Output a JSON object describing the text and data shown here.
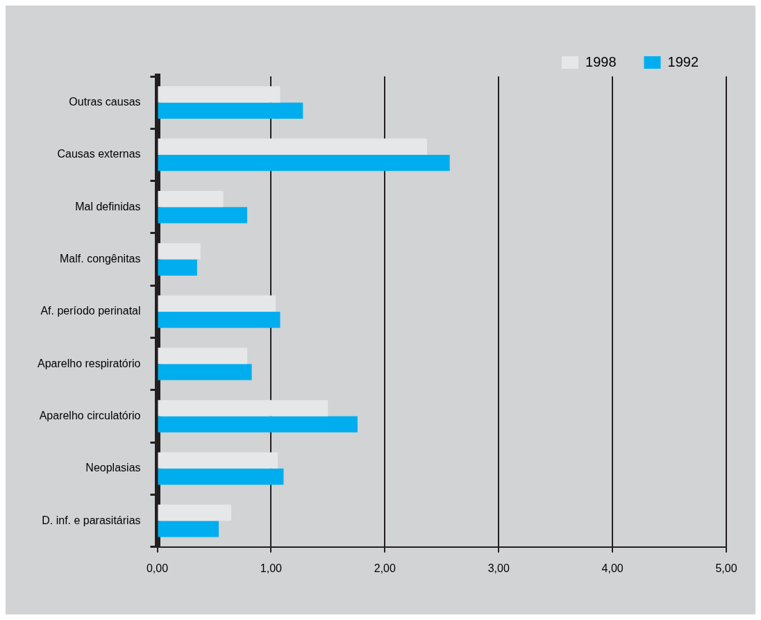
{
  "chart_data": {
    "type": "bar",
    "orientation": "horizontal",
    "categories": [
      "Outras causas",
      "Causas externas",
      "Mal definidas",
      "Malf. congênitas",
      "Af. período perinatal",
      "Aparelho respiratório",
      "Aparelho circulatório",
      "Neoplasias",
      "D. inf. e parasitárias"
    ],
    "series": [
      {
        "name": "1998",
        "color": "#e6e7e9",
        "values": [
          1.08,
          2.37,
          0.58,
          0.38,
          1.04,
          0.79,
          1.5,
          1.06,
          0.65
        ]
      },
      {
        "name": "1992",
        "color": "#00aeef",
        "values": [
          1.28,
          2.57,
          0.79,
          0.35,
          1.08,
          0.83,
          1.76,
          1.11,
          0.54
        ]
      }
    ],
    "xlim": [
      0,
      5
    ],
    "xticks": [
      {
        "value": 0,
        "label": "0,00"
      },
      {
        "value": 1,
        "label": "1,00"
      },
      {
        "value": 2,
        "label": "2,00"
      },
      {
        "value": 3,
        "label": "3,00"
      },
      {
        "value": 4,
        "label": "4,00"
      },
      {
        "value": 5,
        "label": "5,00"
      }
    ],
    "grid": "x",
    "legend": "top right"
  }
}
